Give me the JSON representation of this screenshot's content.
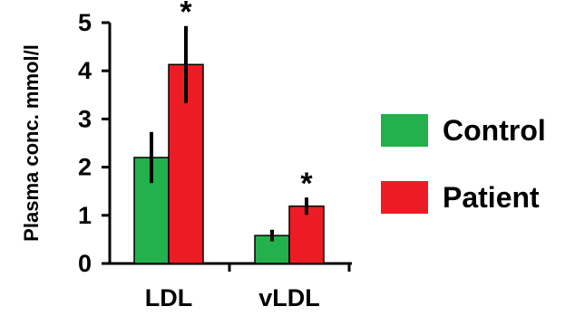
{
  "chart_data": {
    "type": "bar",
    "title": "",
    "xlabel": "",
    "ylabel": "Plasma conc. mmol/l",
    "categories": [
      "LDL",
      "vLDL"
    ],
    "ylim": [
      0,
      5
    ],
    "yticks": [
      "0",
      "1",
      "2",
      "3",
      "4",
      "5"
    ],
    "grid": false,
    "legend_position": "right",
    "series": [
      {
        "name": "Control",
        "color": "#22b14c",
        "values": [
          2.2,
          0.58
        ],
        "errors": [
          0.53,
          0.12
        ]
      },
      {
        "name": "Patient",
        "color": "#ed1c24",
        "values": [
          4.13,
          1.19
        ],
        "errors": [
          0.8,
          0.18
        ]
      }
    ],
    "significance": [
      "*",
      "*"
    ]
  }
}
